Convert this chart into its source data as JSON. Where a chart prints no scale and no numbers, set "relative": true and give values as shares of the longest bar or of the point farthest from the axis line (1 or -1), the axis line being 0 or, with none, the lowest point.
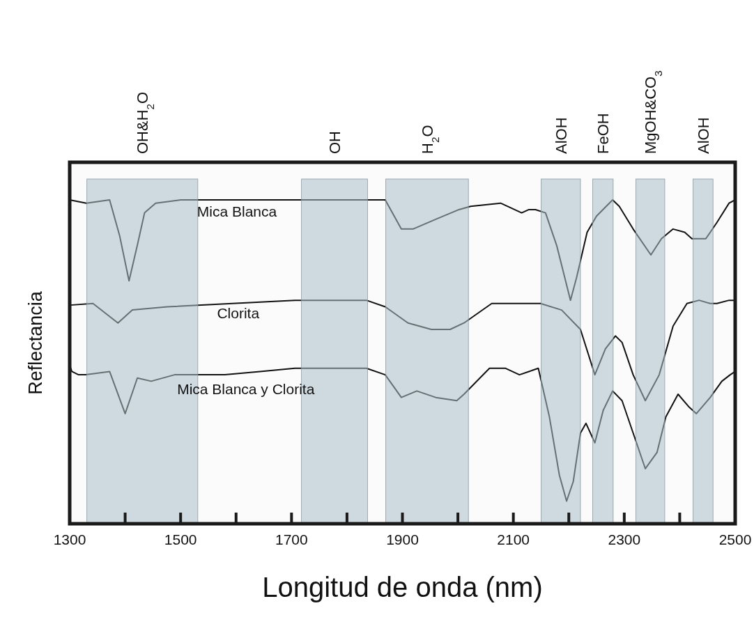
{
  "chart_data": {
    "type": "line",
    "relative": true,
    "xlabel": "Longitud de onda (nm)",
    "ylabel": "Reflectancia",
    "xlim": [
      1300,
      2500
    ],
    "xticks": [
      1300,
      {
        "value": 1400,
        "label": null
      },
      1500,
      {
        "value": 1600,
        "label": null
      },
      1700,
      {
        "value": 1800,
        "label": null
      },
      1900,
      {
        "value": 2000,
        "label": null
      },
      2100,
      {
        "value": 2200,
        "label": null
      },
      2300,
      {
        "value": 2400,
        "label": null
      },
      2500
    ],
    "series": [
      {
        "name": "Mica Blanca",
        "color": "#111111",
        "x": [
          1300,
          1330,
          1372,
          1390,
          1407,
          1422,
          1435,
          1455,
          1500,
          1700,
          1869,
          1898,
          1919,
          1960,
          2002,
          2023,
          2077,
          2115,
          2128,
          2140,
          2158,
          2178,
          2203,
          2214,
          2233,
          2250,
          2279,
          2291,
          2316,
          2348,
          2367,
          2388,
          2409,
          2422,
          2447,
          2467,
          2489,
          2500
        ],
        "values": [
          1.0,
          0.99,
          1.0,
          0.89,
          0.75,
          0.86,
          0.96,
          0.99,
          1.0,
          1.0,
          1.0,
          0.91,
          0.91,
          0.94,
          0.97,
          0.98,
          0.99,
          0.96,
          0.97,
          0.97,
          0.96,
          0.86,
          0.69,
          0.76,
          0.9,
          0.95,
          1.0,
          0.98,
          0.91,
          0.83,
          0.88,
          0.91,
          0.9,
          0.88,
          0.88,
          0.93,
          0.99,
          1.0
        ]
      },
      {
        "name": "Clorita",
        "color": "#111111",
        "x": [
          1300,
          1342,
          1387,
          1413,
          1476,
          1706,
          1835,
          1869,
          1910,
          1952,
          1986,
          2011,
          2061,
          2128,
          2149,
          2187,
          2221,
          2247,
          2266,
          2284,
          2296,
          2316,
          2338,
          2363,
          2388,
          2413,
          2435,
          2455,
          2467,
          2489,
          2500
        ],
        "values": [
          0.675,
          0.68,
          0.62,
          0.66,
          0.67,
          0.69,
          0.69,
          0.67,
          0.62,
          0.6,
          0.6,
          0.62,
          0.68,
          0.68,
          0.68,
          0.66,
          0.6,
          0.46,
          0.54,
          0.58,
          0.56,
          0.46,
          0.38,
          0.46,
          0.61,
          0.68,
          0.69,
          0.68,
          0.68,
          0.69,
          0.69
        ]
      },
      {
        "name": "Mica Blanca y Clorita",
        "color": "#111111",
        "x": [
          1300,
          1304,
          1316,
          1329,
          1372,
          1400,
          1422,
          1447,
          1489,
          1523,
          1580,
          1643,
          1706,
          1835,
          1869,
          1898,
          1926,
          1960,
          1998,
          2011,
          2057,
          2086,
          2111,
          2128,
          2145,
          2165,
          2183,
          2196,
          2208,
          2221,
          2231,
          2247,
          2262,
          2279,
          2296,
          2316,
          2338,
          2359,
          2375,
          2397,
          2417,
          2430,
          2455,
          2476,
          2491,
          2500
        ],
        "values": [
          0.49,
          0.47,
          0.46,
          0.46,
          0.47,
          0.34,
          0.45,
          0.44,
          0.46,
          0.46,
          0.46,
          0.47,
          0.48,
          0.48,
          0.46,
          0.39,
          0.41,
          0.39,
          0.38,
          0.4,
          0.48,
          0.48,
          0.46,
          0.47,
          0.48,
          0.33,
          0.15,
          0.07,
          0.13,
          0.28,
          0.31,
          0.25,
          0.35,
          0.41,
          0.38,
          0.28,
          0.17,
          0.22,
          0.33,
          0.4,
          0.36,
          0.34,
          0.39,
          0.44,
          0.46,
          0.47
        ]
      }
    ],
    "bands": [
      {
        "axis": "x",
        "from": 1331,
        "to": 1531,
        "label": "OH&H$_{2}$O",
        "color": "#aabfc6"
      },
      {
        "axis": "x",
        "from": 1718,
        "to": 1837,
        "label": "OH",
        "color": "#aabfc6"
      },
      {
        "axis": "x",
        "from": 1870,
        "to": 2019,
        "label": "H$_{2}$O",
        "color": "#aabfc6"
      },
      {
        "axis": "x",
        "from": 2150,
        "to": 2221,
        "label": "AlOH",
        "color": "#aabfc6"
      },
      {
        "axis": "x",
        "from": 2243,
        "to": 2280,
        "label": "FeOH",
        "color": "#aabfc6"
      },
      {
        "axis": "x",
        "from": 2321,
        "to": 2373,
        "label": "MgOH&CO$_{3}$",
        "color": "#aabfc6"
      },
      {
        "axis": "x",
        "from": 2424,
        "to": 2460,
        "label": "AlOH",
        "color": "#aabfc6"
      }
    ]
  }
}
